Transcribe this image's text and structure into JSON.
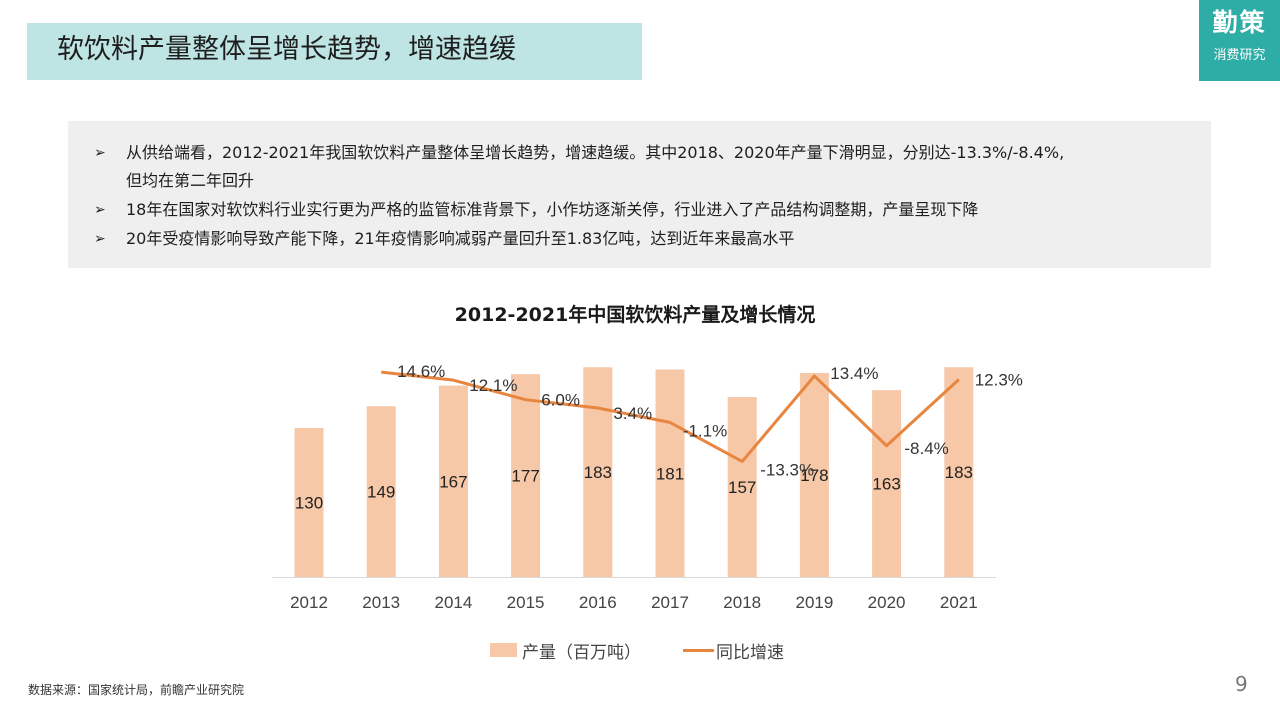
{
  "header": {
    "title": "软饮料产量整体呈增长趋势，增速趋缓"
  },
  "logo": {
    "main": "勤策",
    "sub": "消费研究"
  },
  "summary": {
    "arrow": "➢",
    "bullets": [
      "从供给端看，2012-2021年我国软饮料产量整体呈增长趋势，增速趋缓。其中2018、2020年产量下滑明显，分别达-13.3%/-8.4%,",
      "但均在第二年回升",
      "18年在国家对软饮料行业实行更为严格的监管标准背景下，小作坊逐渐关停，行业进入了产品结构调整期，产量呈现下降",
      "20年受疫情影响导致产能下降，21年疫情影响减弱产量回升至1.83亿吨，达到近年来最高水平"
    ]
  },
  "chart_data": {
    "type": "bar",
    "title": "2012-2021年中国软饮料产量及增长情况",
    "categories": [
      "2012",
      "2013",
      "2014",
      "2015",
      "2016",
      "2017",
      "2018",
      "2019",
      "2020",
      "2021"
    ],
    "series": [
      {
        "name": "产量（百万吨）",
        "type": "bar",
        "color": "#f6c8a8",
        "values": [
          130,
          149,
          167,
          177,
          183,
          181,
          157,
          178,
          163,
          183
        ],
        "labels": [
          "130",
          "149",
          "167",
          "177",
          "183",
          "181",
          "157",
          "178",
          "163",
          "183"
        ]
      },
      {
        "name": "同比增速",
        "type": "line",
        "color": "#e8853f",
        "values": [
          null,
          14.6,
          12.1,
          6.0,
          3.4,
          -1.1,
          -13.3,
          13.4,
          -8.4,
          12.3
        ],
        "labels": [
          "",
          "14.6%",
          "12.1%",
          "6.0%",
          "3.4%",
          "-1.1%",
          "-13.3%",
          "13.4%",
          "-8.4%",
          "12.3%"
        ]
      }
    ],
    "legend": [
      "产量（百万吨）",
      "同比增速"
    ],
    "legend_position": "bottom",
    "grid": false
  },
  "footer": {
    "source": "数据来源：国家统计局，前瞻产业研究院",
    "page": "9"
  }
}
